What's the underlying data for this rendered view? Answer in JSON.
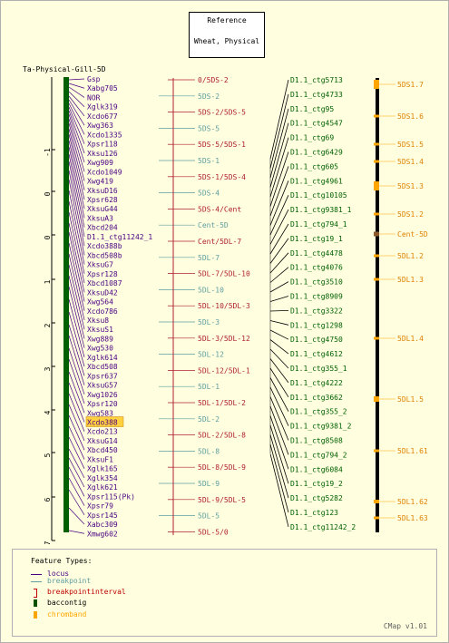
{
  "reference": {
    "line1": "Reference",
    "line2": "Wheat, Physical"
  },
  "map_title": "Ta-Physical-Gill-5D",
  "axis_ticks": [
    "-1",
    "0",
    "0",
    "1",
    "2",
    "3",
    "4",
    "5",
    "6",
    "7"
  ],
  "loci": [
    "Gsp",
    "Xabg705",
    "NOR",
    "Xglk319",
    "Xcdo677",
    "Xwg363",
    "Xcdo1335",
    "Xpsr118",
    "Xksu126",
    "Xwg909",
    "Xcdo1049",
    "Xwg419",
    "XksuD16",
    "Xpsr628",
    "XksuG44",
    "XksuA3",
    "Xbcd204",
    "D1.1_ctg11242_1",
    "Xcdo388b",
    "Xbcd508b",
    "XksuG7",
    "Xpsr128",
    "Xbcd1087",
    "XksuD42",
    "Xwg564",
    "Xcdo786",
    "Xksu8",
    "XksuS1",
    "Xwg889",
    "Xwg530",
    "Xglk614",
    "Xbcd508",
    "Xpsr637",
    "XksuG57",
    "Xwg1026",
    "Xpsr120",
    "Xwg583",
    "Xcdo388",
    "Xcdo213",
    "XksuG14",
    "Xbcd450",
    "XksuF1",
    "Xglk165",
    "Xglk354",
    "Xglk621",
    "Xpsr115(Pk)",
    "Xpsr79",
    "Xpsr145",
    "Xabc309",
    "Xmwg602"
  ],
  "highlighted_locus": "Xcdo388",
  "breakpoints": [
    {
      "label": "0/5DS-2",
      "kind": "interval"
    },
    {
      "label": "5DS-2",
      "kind": "point"
    },
    {
      "label": "5DS-2/5DS-5",
      "kind": "interval"
    },
    {
      "label": "5DS-5",
      "kind": "point"
    },
    {
      "label": "5DS-5/5DS-1",
      "kind": "interval"
    },
    {
      "label": "5DS-1",
      "kind": "point"
    },
    {
      "label": "5DS-1/5DS-4",
      "kind": "interval"
    },
    {
      "label": "5DS-4",
      "kind": "point"
    },
    {
      "label": "5DS-4/Cent",
      "kind": "interval"
    },
    {
      "label": "Cent-5D",
      "kind": "point"
    },
    {
      "label": "Cent/5DL-7",
      "kind": "interval"
    },
    {
      "label": "5DL-7",
      "kind": "point"
    },
    {
      "label": "5DL-7/5DL-10",
      "kind": "interval"
    },
    {
      "label": "5DL-10",
      "kind": "point"
    },
    {
      "label": "5DL-10/5DL-3",
      "kind": "interval"
    },
    {
      "label": "5DL-3",
      "kind": "point"
    },
    {
      "label": "5DL-3/5DL-12",
      "kind": "interval"
    },
    {
      "label": "5DL-12",
      "kind": "point"
    },
    {
      "label": "5DL-12/5DL-1",
      "kind": "interval"
    },
    {
      "label": "5DL-1",
      "kind": "point"
    },
    {
      "label": "5DL-1/5DL-2",
      "kind": "interval"
    },
    {
      "label": "5DL-2",
      "kind": "point"
    },
    {
      "label": "5DL-2/5DL-8",
      "kind": "interval"
    },
    {
      "label": "5DL-8",
      "kind": "point"
    },
    {
      "label": "5DL-8/5DL-9",
      "kind": "interval"
    },
    {
      "label": "5DL-9",
      "kind": "point"
    },
    {
      "label": "5DL-9/5DL-5",
      "kind": "interval"
    },
    {
      "label": "5DL-5",
      "kind": "point"
    },
    {
      "label": "5DL-5/0",
      "kind": "interval"
    }
  ],
  "contigs": [
    "D1.1_ctg5713",
    "D1.1_ctg4733",
    "D1.1_ctg95",
    "D1.1_ctg4547",
    "D1.1_ctg69",
    "D1.1_ctg6429",
    "D1.1_ctg605",
    "D1.1_ctg4961",
    "D1.1_ctg10105",
    "D1.1_ctg9381_1",
    "D1.1_ctg794_1",
    "D1.1_ctg19_1",
    "D1.1_ctg4478",
    "D1.1_ctg4076",
    "D1.1_ctg3510",
    "D1.1_ctg8909",
    "D1.1_ctg3322",
    "D1.1_ctg1298",
    "D1.1_ctg4750",
    "D1.1_ctg4612",
    "D1.1_ctg355_1",
    "D1.1_ctg4222",
    "D1.1_ctg3662",
    "D1.1_ctg355_2",
    "D1.1_ctg9381_2",
    "D1.1_ctg8508",
    "D1.1_ctg794_2",
    "D1.1_ctg6084",
    "D1.1_ctg19_2",
    "D1.1_ctg5282",
    "D1.1_ctg123",
    "D1.1_ctg11242_2"
  ],
  "chrom_bands": [
    "5DS1.7",
    "5DS1.6",
    "5DS1.5",
    "5DS1.4",
    "5DS1.3",
    "5DS1.2",
    "Cent-5D",
    "5DL1.2",
    "5DL1.3",
    "5DL1.4",
    "5DL1.5",
    "5DL1.61",
    "5DL1.62",
    "5DL1.63"
  ],
  "legend": {
    "title": "Feature Types:",
    "items": [
      {
        "label": "locus",
        "color": "#4b0082"
      },
      {
        "label": "breakpoint",
        "color": "#5f9ea0"
      },
      {
        "label": "breakpointinterval",
        "color": "#c00000"
      },
      {
        "label": "baccontig",
        "color": "#005000"
      },
      {
        "label": "chromband",
        "color": "#ffa500"
      }
    ]
  },
  "colors": {
    "locus": "#4b0082",
    "breakpoint": "#5f9ea0",
    "interval": "#b02030",
    "contig_text": "#006000",
    "band_text": "#e08000",
    "highlight": "#ffd040",
    "contig_bar": "#006000",
    "chrom_bar": "#000000",
    "band": "#ffa500"
  },
  "version": "CMap v1.01"
}
